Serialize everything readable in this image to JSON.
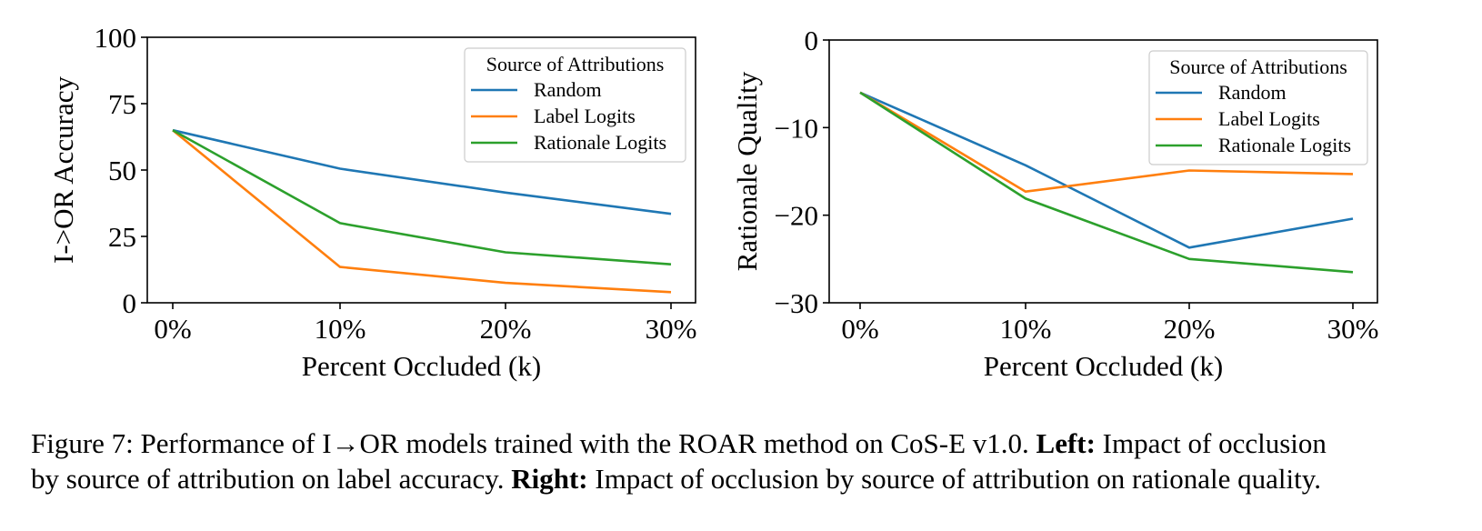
{
  "chart_data": [
    {
      "type": "line",
      "xlabel": "Percent Occluded (k)",
      "ylabel": "I->OR Accuracy",
      "categories": [
        "0%",
        "10%",
        "20%",
        "30%"
      ],
      "ylim": [
        0,
        100
      ],
      "yticks": [
        "0",
        "25",
        "50",
        "75",
        "100"
      ],
      "ytick_values": [
        0,
        25,
        50,
        75,
        100
      ],
      "legend": {
        "title": "Source of Attributions",
        "location": "upper right"
      },
      "grid": false,
      "series": [
        {
          "name": "Random",
          "color": "#1f77b4",
          "values": [
            65,
            50.5,
            41.5,
            33.5
          ]
        },
        {
          "name": "Label Logits",
          "color": "#ff7f0e",
          "values": [
            65,
            13.5,
            7.5,
            4
          ]
        },
        {
          "name": "Rationale Logits",
          "color": "#2ca02c",
          "values": [
            65,
            30,
            19,
            14.5
          ]
        }
      ]
    },
    {
      "type": "line",
      "xlabel": "Percent Occluded (k)",
      "ylabel": "Rationale Quality",
      "categories": [
        "0%",
        "10%",
        "20%",
        "30%"
      ],
      "ylim": [
        -30,
        0
      ],
      "yticks": [
        "−30",
        "−20",
        "−10",
        "0"
      ],
      "ytick_values": [
        -30,
        -20,
        -10,
        0
      ],
      "legend": {
        "title": "Source of Attributions",
        "location": "upper right"
      },
      "grid": false,
      "series": [
        {
          "name": "Random",
          "color": "#1f77b4",
          "values": [
            -6,
            -14.3,
            -23.7,
            -20.4
          ]
        },
        {
          "name": "Label Logits",
          "color": "#ff7f0e",
          "values": [
            -6,
            -17.3,
            -14.9,
            -15.3
          ]
        },
        {
          "name": "Rationale Logits",
          "color": "#2ca02c",
          "values": [
            -6,
            -18.1,
            -25,
            -26.5
          ]
        }
      ]
    }
  ],
  "caption": {
    "prefix": "Figure 7: Performance of I→OR models trained with the ROAR method on CoS-E v1.0. ",
    "left_label": "Left:",
    "left_text": " Impact of occlusion",
    "line2_start": "by source of attribution on label accuracy. ",
    "right_label": "Right:",
    "right_text": " Impact of occlusion by source of attribution on rationale quality."
  }
}
